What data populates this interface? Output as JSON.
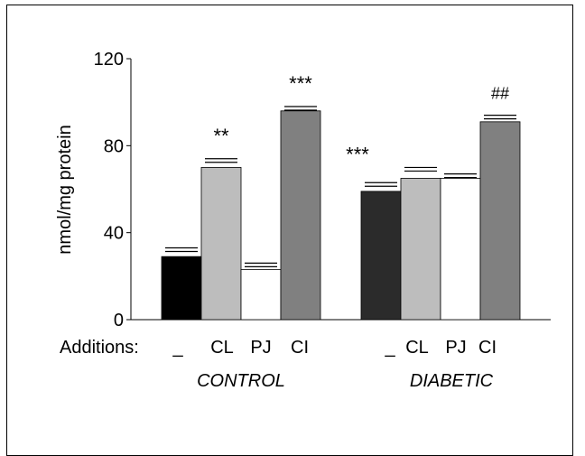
{
  "chart_data": {
    "type": "bar",
    "ylabel": "nmol/mg protein",
    "ylim": [
      0,
      120
    ],
    "yticks": [
      0,
      40,
      80,
      120
    ],
    "additions_label": "Additions:",
    "groups": [
      {
        "name": "CONTROL",
        "bars": [
          {
            "label": "_",
            "value": 29,
            "error": 33,
            "color": "#000000",
            "annotation": ""
          },
          {
            "label": "CL",
            "value": 70,
            "error": 74,
            "color": "#bdbdbd",
            "annotation": "**"
          },
          {
            "label": "PJ",
            "value": 23,
            "error": 26,
            "color": "#ffffff",
            "annotation": ""
          },
          {
            "label": "CI",
            "value": 96,
            "error": 98,
            "color": "#808080",
            "annotation": "***"
          }
        ]
      },
      {
        "name": "DIABETIC",
        "bars": [
          {
            "label": "_",
            "value": 59,
            "error": 63,
            "color": "#2b2b2b",
            "annotation": "***"
          },
          {
            "label": "CL",
            "value": 65,
            "error": 70,
            "color": "#bdbdbd",
            "annotation": ""
          },
          {
            "label": "PJ",
            "value": 65,
            "error": 67,
            "color": "#ffffff",
            "annotation": ""
          },
          {
            "label": "CI",
            "value": 91,
            "error": 94,
            "color": "#808080",
            "annotation": "##"
          }
        ]
      }
    ]
  }
}
